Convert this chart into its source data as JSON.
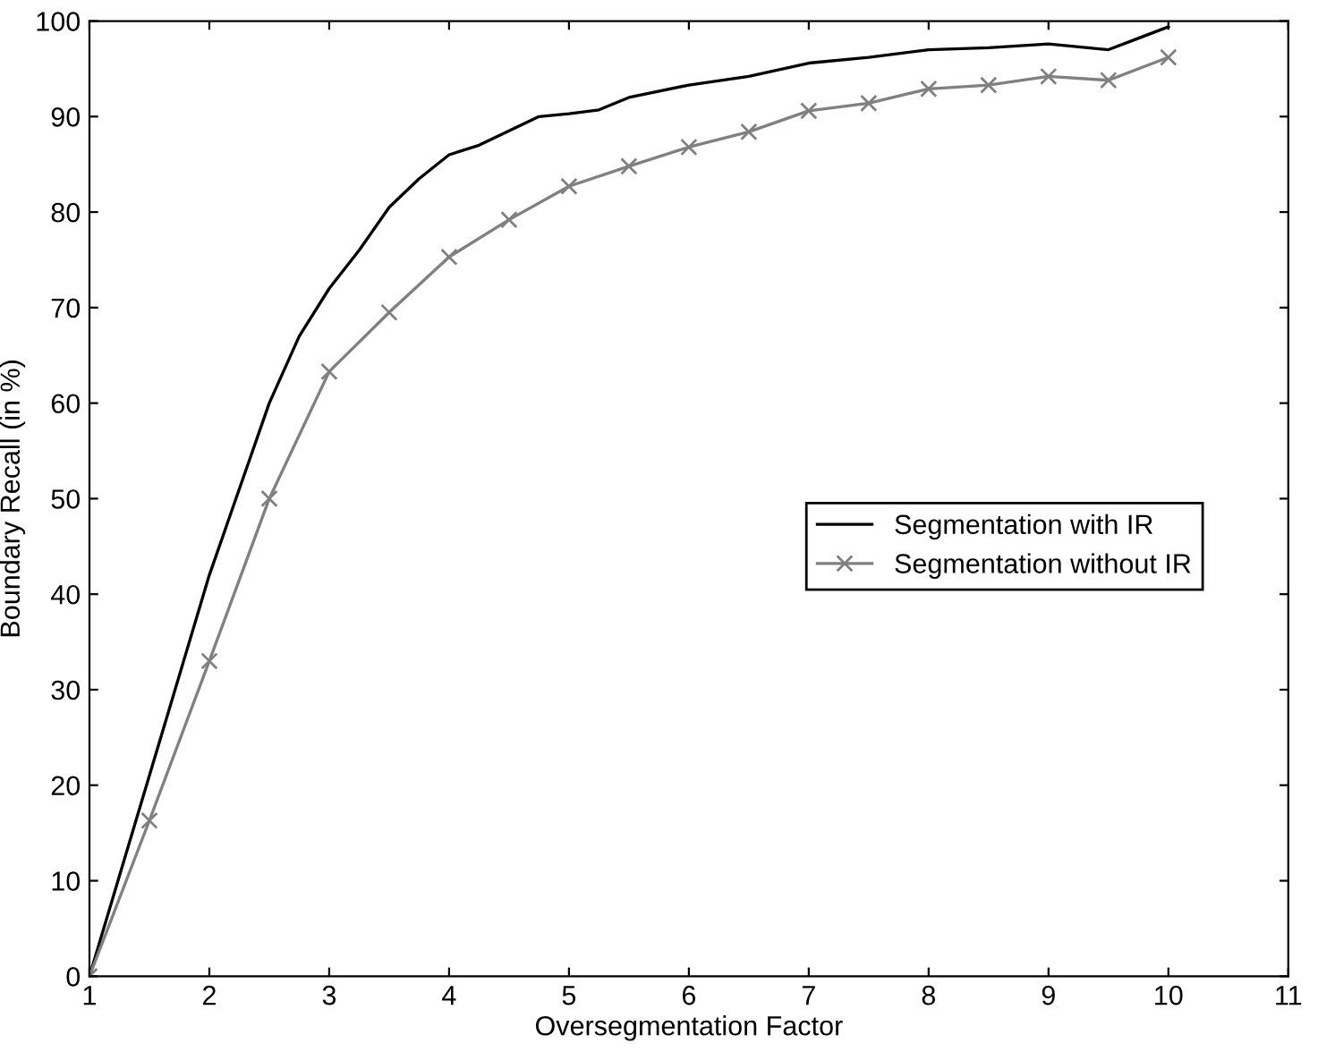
{
  "chart_data": {
    "type": "line",
    "xlabel": "Oversegmentation Factor",
    "ylabel": "Boundary Recall (in %)",
    "xlim": [
      1,
      11
    ],
    "ylim": [
      0,
      100
    ],
    "xticks": [
      1,
      2,
      3,
      4,
      5,
      6,
      7,
      8,
      9,
      10,
      11
    ],
    "yticks": [
      0,
      10,
      20,
      30,
      40,
      50,
      60,
      70,
      80,
      90,
      100
    ],
    "grid": false,
    "legend": "right",
    "series": [
      {
        "name": "Segmentation with IR",
        "color": "#000000",
        "marker": "none",
        "x": [
          1,
          1.5,
          2,
          2.5,
          2.75,
          3,
          3.25,
          3.5,
          3.75,
          4,
          4.25,
          4.5,
          4.75,
          5,
          5.25,
          5.5,
          6,
          6.5,
          7,
          7.5,
          8,
          8.5,
          9,
          9.5,
          10
        ],
        "values": [
          0,
          21,
          42,
          60,
          67,
          72,
          76,
          80.5,
          83.5,
          86,
          87,
          88.5,
          90,
          90.3,
          90.7,
          92,
          93.3,
          94.2,
          95.6,
          96.2,
          97,
          97.2,
          97.6,
          97,
          99.4
        ]
      },
      {
        "name": "Segmentation without IR",
        "color": "#808080",
        "marker": "cross",
        "x": [
          1,
          1.5,
          2,
          2.5,
          3,
          3.5,
          4,
          4.5,
          5,
          5.5,
          6,
          6.5,
          7,
          7.5,
          8,
          8.5,
          9,
          9.5,
          10
        ],
        "values": [
          0,
          16.3,
          33,
          50,
          63.3,
          69.5,
          75.3,
          79.2,
          82.7,
          84.8,
          86.8,
          88.4,
          90.6,
          91.4,
          92.9,
          93.3,
          94.2,
          93.8,
          96.2
        ]
      }
    ]
  }
}
